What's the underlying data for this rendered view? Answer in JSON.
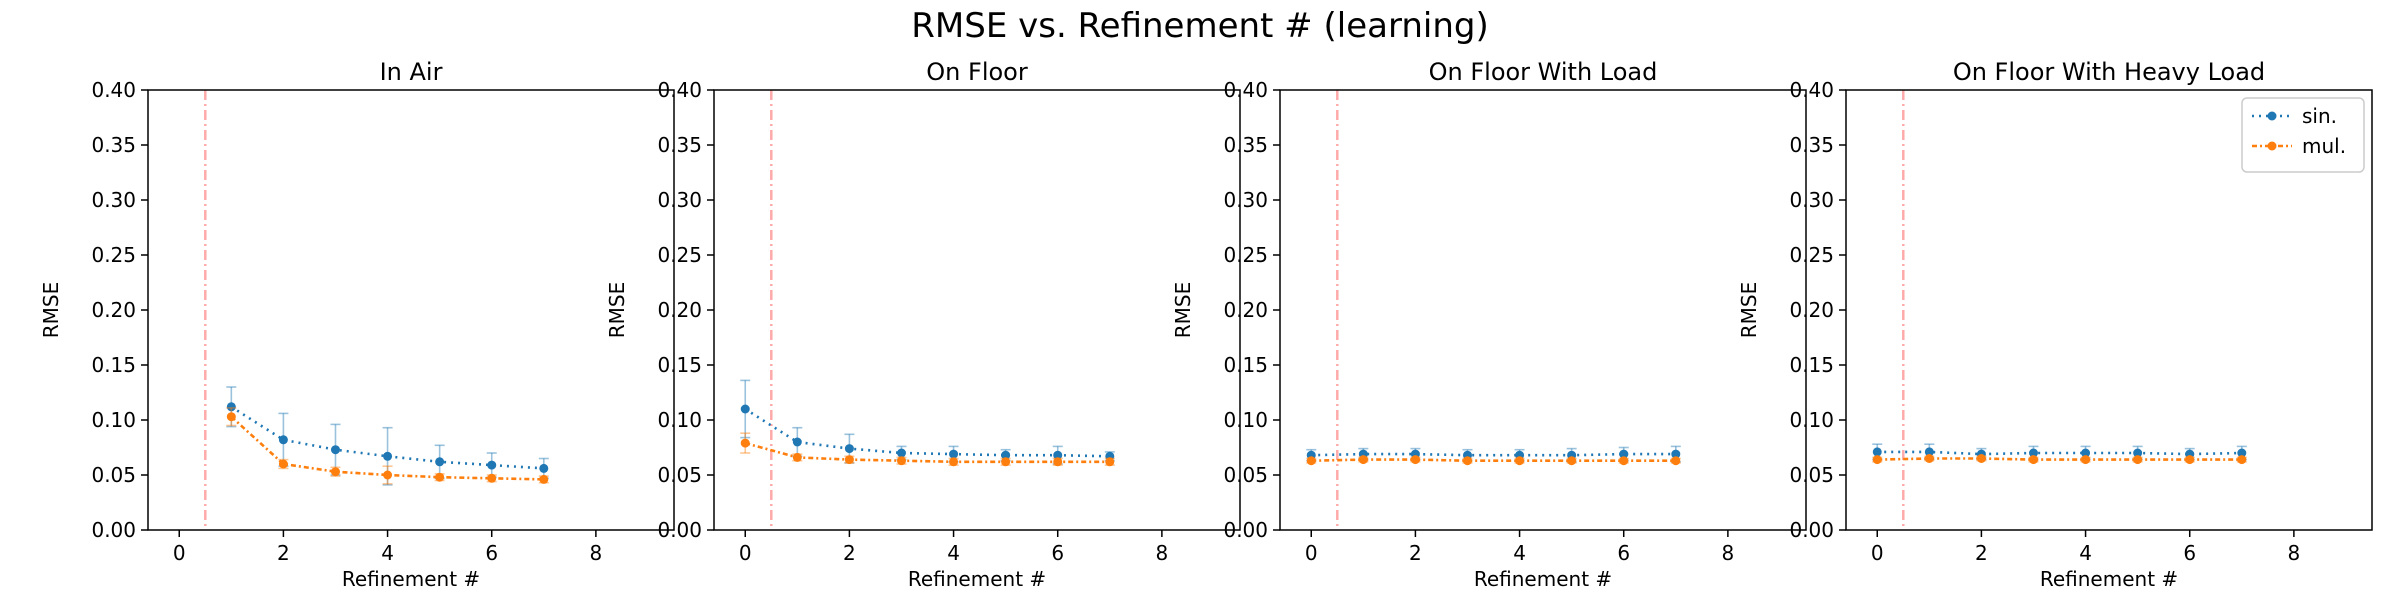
{
  "figure_title": "RMSE vs. Refinement # (learning)",
  "colors": {
    "sin": "#1f77b4",
    "mul": "#ff7f0e",
    "vline": "#ffaaaa"
  },
  "chart_data": [
    {
      "type": "line",
      "title": "In Air",
      "xlabel": "Refinement #",
      "ylabel": "RMSE",
      "xlim": [
        -0.6,
        9.5
      ],
      "ylim": [
        0,
        0.4
      ],
      "xticks": [
        0,
        2,
        4,
        6,
        8
      ],
      "yticks": [
        0.0,
        0.05,
        0.1,
        0.15,
        0.2,
        0.25,
        0.3,
        0.35,
        0.4
      ],
      "grid": false,
      "vline_x": 0.5,
      "series": [
        {
          "name": "sin.",
          "x": [
            1,
            2,
            3,
            4,
            5,
            6,
            7
          ],
          "values": [
            0.112,
            0.082,
            0.073,
            0.067,
            0.062,
            0.059,
            0.056
          ],
          "error": [
            0.018,
            0.024,
            0.023,
            0.026,
            0.015,
            0.011,
            0.009
          ]
        },
        {
          "name": "mul.",
          "x": [
            1,
            2,
            3,
            4,
            5,
            6,
            7
          ],
          "values": [
            0.103,
            0.06,
            0.053,
            0.05,
            0.048,
            0.047,
            0.046
          ],
          "error": [
            0.008,
            0.004,
            0.004,
            0.008,
            0.003,
            0.003,
            0.003
          ]
        }
      ]
    },
    {
      "type": "line",
      "title": "On Floor",
      "xlabel": "Refinement #",
      "ylabel": "RMSE",
      "xlim": [
        -0.6,
        9.5
      ],
      "ylim": [
        0,
        0.4
      ],
      "xticks": [
        0,
        2,
        4,
        6,
        8
      ],
      "yticks": [
        0.0,
        0.05,
        0.1,
        0.15,
        0.2,
        0.25,
        0.3,
        0.35,
        0.4
      ],
      "grid": false,
      "vline_x": 0.5,
      "series": [
        {
          "name": "sin.",
          "x": [
            0,
            1,
            2,
            3,
            4,
            5,
            6,
            7
          ],
          "values": [
            0.11,
            0.08,
            0.074,
            0.07,
            0.069,
            0.068,
            0.068,
            0.067
          ],
          "error": [
            0.026,
            0.013,
            0.013,
            0.006,
            0.007,
            0.005,
            0.008,
            0.004
          ]
        },
        {
          "name": "mul.",
          "x": [
            0,
            1,
            2,
            3,
            4,
            5,
            6,
            7
          ],
          "values": [
            0.079,
            0.066,
            0.064,
            0.063,
            0.062,
            0.062,
            0.062,
            0.062
          ],
          "error": [
            0.009,
            0.003,
            0.003,
            0.003,
            0.003,
            0.003,
            0.003,
            0.003
          ]
        }
      ]
    },
    {
      "type": "line",
      "title": "On Floor With Load",
      "xlabel": "Refinement #",
      "ylabel": "RMSE",
      "xlim": [
        -0.6,
        9.5
      ],
      "ylim": [
        0,
        0.4
      ],
      "xticks": [
        0,
        2,
        4,
        6,
        8
      ],
      "yticks": [
        0.0,
        0.05,
        0.1,
        0.15,
        0.2,
        0.25,
        0.3,
        0.35,
        0.4
      ],
      "grid": false,
      "vline_x": 0.5,
      "series": [
        {
          "name": "sin.",
          "x": [
            0,
            1,
            2,
            3,
            4,
            5,
            6,
            7
          ],
          "values": [
            0.068,
            0.069,
            0.069,
            0.068,
            0.068,
            0.068,
            0.069,
            0.069
          ],
          "error": [
            0.005,
            0.005,
            0.005,
            0.005,
            0.005,
            0.006,
            0.006,
            0.007
          ]
        },
        {
          "name": "mul.",
          "x": [
            0,
            1,
            2,
            3,
            4,
            5,
            6,
            7
          ],
          "values": [
            0.063,
            0.064,
            0.064,
            0.063,
            0.063,
            0.063,
            0.063,
            0.063
          ],
          "error": [
            0.002,
            0.002,
            0.002,
            0.002,
            0.002,
            0.002,
            0.002,
            0.002
          ]
        }
      ]
    },
    {
      "type": "line",
      "title": "On Floor With Heavy Load",
      "xlabel": "Refinement #",
      "ylabel": "RMSE",
      "xlim": [
        -0.6,
        9.5
      ],
      "ylim": [
        0,
        0.4
      ],
      "xticks": [
        0,
        2,
        4,
        6,
        8
      ],
      "yticks": [
        0.0,
        0.05,
        0.1,
        0.15,
        0.2,
        0.25,
        0.3,
        0.35,
        0.4
      ],
      "grid": false,
      "vline_x": 0.5,
      "legend": "top-right",
      "series": [
        {
          "name": "sin.",
          "x": [
            0,
            1,
            2,
            3,
            4,
            5,
            6,
            7
          ],
          "values": [
            0.071,
            0.071,
            0.069,
            0.07,
            0.07,
            0.07,
            0.069,
            0.07
          ],
          "error": [
            0.007,
            0.007,
            0.005,
            0.006,
            0.006,
            0.006,
            0.005,
            0.006
          ]
        },
        {
          "name": "mul.",
          "x": [
            0,
            1,
            2,
            3,
            4,
            5,
            6,
            7
          ],
          "values": [
            0.064,
            0.065,
            0.065,
            0.064,
            0.064,
            0.064,
            0.064,
            0.064
          ],
          "error": [
            0.002,
            0.002,
            0.002,
            0.002,
            0.002,
            0.002,
            0.002,
            0.002
          ]
        }
      ]
    }
  ]
}
